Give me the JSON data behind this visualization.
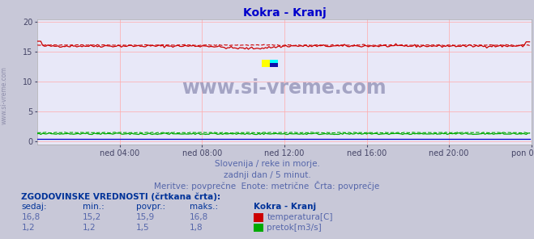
{
  "title": "Kokra - Kranj",
  "title_color": "#0000cc",
  "bg_color": "#c8c8d8",
  "plot_bg_color": "#e8e8f8",
  "grid_color": "#ffaaaa",
  "xlabel_ticks": [
    "ned 04:00",
    "ned 08:00",
    "ned 12:00",
    "ned 16:00",
    "ned 20:00",
    "pon 00:00"
  ],
  "yticks": [
    0,
    5,
    10,
    15,
    20
  ],
  "ylim": [
    -0.5,
    20.5
  ],
  "xlim": [
    0,
    288
  ],
  "temp_color": "#cc0000",
  "flow_color": "#00aa00",
  "height_color": "#0000cc",
  "watermark": "www.si-vreme.com",
  "watermark_color": "#9999bb",
  "subtitle1": "Slovenija / reke in morje.",
  "subtitle2": "zadnji dan / 5 minut.",
  "subtitle3": "Meritve: povprečne  Enote: metrične  Črta: povprečje",
  "table_header": "ZGODOVINSKE VREDNOSTI (črtkana črta):",
  "col_sedaj": "sedaj:",
  "col_min": "min.:",
  "col_povpr": "povpr.:",
  "col_maks": "maks.:",
  "col_station": "Kokra - Kranj",
  "row1_vals": [
    "16,8",
    "15,2",
    "15,9",
    "16,8"
  ],
  "row1_label": "temperatura[C]",
  "row1_color": "#cc0000",
  "row2_vals": [
    "1,2",
    "1,2",
    "1,5",
    "1,8"
  ],
  "row2_label": "pretok[m3/s]",
  "row2_color": "#00aa00",
  "n_points": 288,
  "tick_x_positions": [
    48,
    96,
    144,
    192,
    240,
    288
  ],
  "text_color": "#5566aa",
  "header_color": "#003399"
}
